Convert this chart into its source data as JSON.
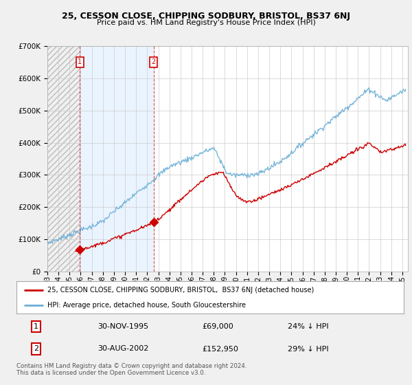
{
  "title1": "25, CESSON CLOSE, CHIPPING SODBURY, BRISTOL, BS37 6NJ",
  "title2": "Price paid vs. HM Land Registry's House Price Index (HPI)",
  "ylim": [
    0,
    700000
  ],
  "yticks": [
    0,
    100000,
    200000,
    300000,
    400000,
    500000,
    600000,
    700000
  ],
  "ytick_labels": [
    "£0",
    "£100K",
    "£200K",
    "£300K",
    "£400K",
    "£500K",
    "£600K",
    "£700K"
  ],
  "hpi_color": "#6baed6",
  "price_color": "#cc0000",
  "t1_year": 1995.92,
  "t1_price": 69000,
  "t2_year": 2002.58,
  "t2_price": 152950,
  "legend_line1": "25, CESSON CLOSE, CHIPPING SODBURY, BRISTOL,  BS37 6NJ (detached house)",
  "legend_line2": "HPI: Average price, detached house, South Gloucestershire",
  "table_row1": [
    "1",
    "30-NOV-1995",
    "£69,000",
    "24% ↓ HPI"
  ],
  "table_row2": [
    "2",
    "30-AUG-2002",
    "£152,950",
    "29% ↓ HPI"
  ],
  "footer": "Contains HM Land Registry data © Crown copyright and database right 2024.\nThis data is licensed under the Open Government Licence v3.0.",
  "hatch_bg": "#e8e8e8",
  "shade_bg": "#ddeeff",
  "xstart": 1993,
  "xend": 2025.5
}
